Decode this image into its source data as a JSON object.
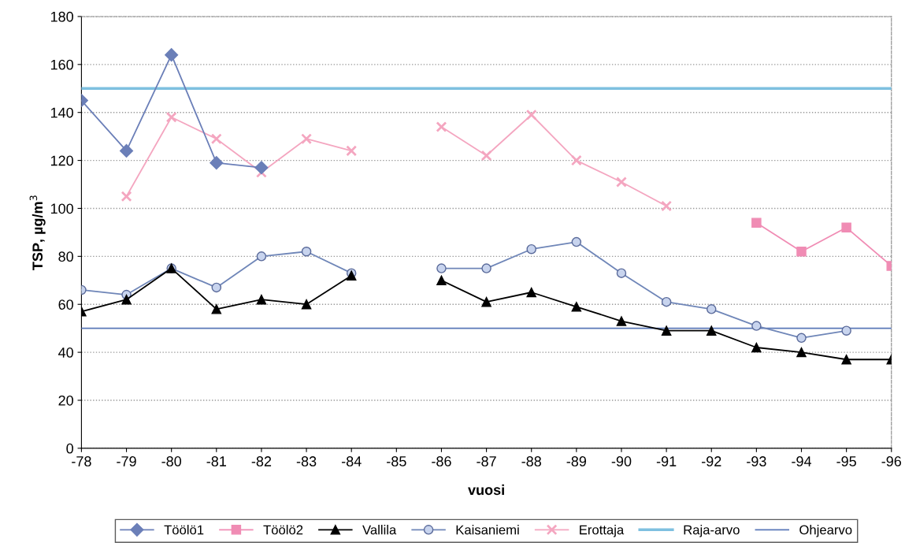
{
  "chart_data": {
    "type": "line",
    "xlabel": "vuosi",
    "ylabel": "TSP, µg/m$^{3}$",
    "categories": [
      "-78",
      "-79",
      "-80",
      "-81",
      "-82",
      "-83",
      "-84",
      "-85",
      "-86",
      "-87",
      "-88",
      "-89",
      "-90",
      "-91",
      "-92",
      "-93",
      "-94",
      "-95",
      "-96"
    ],
    "ylim": [
      0,
      180
    ],
    "yticks": [
      0,
      20,
      40,
      60,
      80,
      100,
      120,
      140,
      160,
      180
    ],
    "grid": "y",
    "legend": "bottom",
    "series": [
      {
        "name": "Töölö1",
        "color": "#6b7fb8",
        "marker": "diamond",
        "values": [
          145,
          124,
          164,
          119,
          117,
          null,
          null,
          null,
          null,
          null,
          null,
          null,
          null,
          null,
          null,
          null,
          null,
          null,
          null
        ]
      },
      {
        "name": "Töölö2",
        "color": "#f08cb4",
        "marker": "square",
        "values": [
          null,
          null,
          null,
          null,
          null,
          null,
          null,
          null,
          null,
          null,
          null,
          null,
          null,
          null,
          null,
          94,
          82,
          92,
          76
        ]
      },
      {
        "name": "Vallila",
        "color": "#000000",
        "marker": "triangle",
        "values": [
          57,
          62,
          75,
          58,
          62,
          60,
          72,
          null,
          70,
          61,
          65,
          59,
          53,
          49,
          49,
          42,
          40,
          37,
          37
        ]
      },
      {
        "name": "Kaisaniemi",
        "color": "#6f86b8",
        "marker": "circle",
        "values": [
          66,
          64,
          75,
          67,
          80,
          82,
          73,
          null,
          75,
          75,
          83,
          86,
          73,
          61,
          58,
          51,
          46,
          49,
          null
        ]
      },
      {
        "name": "Erottaja",
        "color": "#f4a6c0",
        "marker": "cross",
        "values": [
          null,
          105,
          138,
          129,
          115,
          129,
          124,
          null,
          134,
          122,
          139,
          120,
          111,
          101,
          null,
          null,
          null,
          null,
          null
        ]
      },
      {
        "name": "Raja-arvo",
        "color": "#7ec0e0",
        "marker": "none",
        "values": [
          150,
          150,
          150,
          150,
          150,
          150,
          150,
          150,
          150,
          150,
          150,
          150,
          150,
          150,
          150,
          150,
          150,
          150,
          150
        ]
      },
      {
        "name": "Ohjearvo",
        "color": "#5a78b8",
        "marker": "none",
        "values": [
          50,
          50,
          50,
          50,
          50,
          50,
          50,
          50,
          50,
          50,
          50,
          50,
          50,
          50,
          50,
          50,
          50,
          50,
          50
        ]
      }
    ]
  }
}
